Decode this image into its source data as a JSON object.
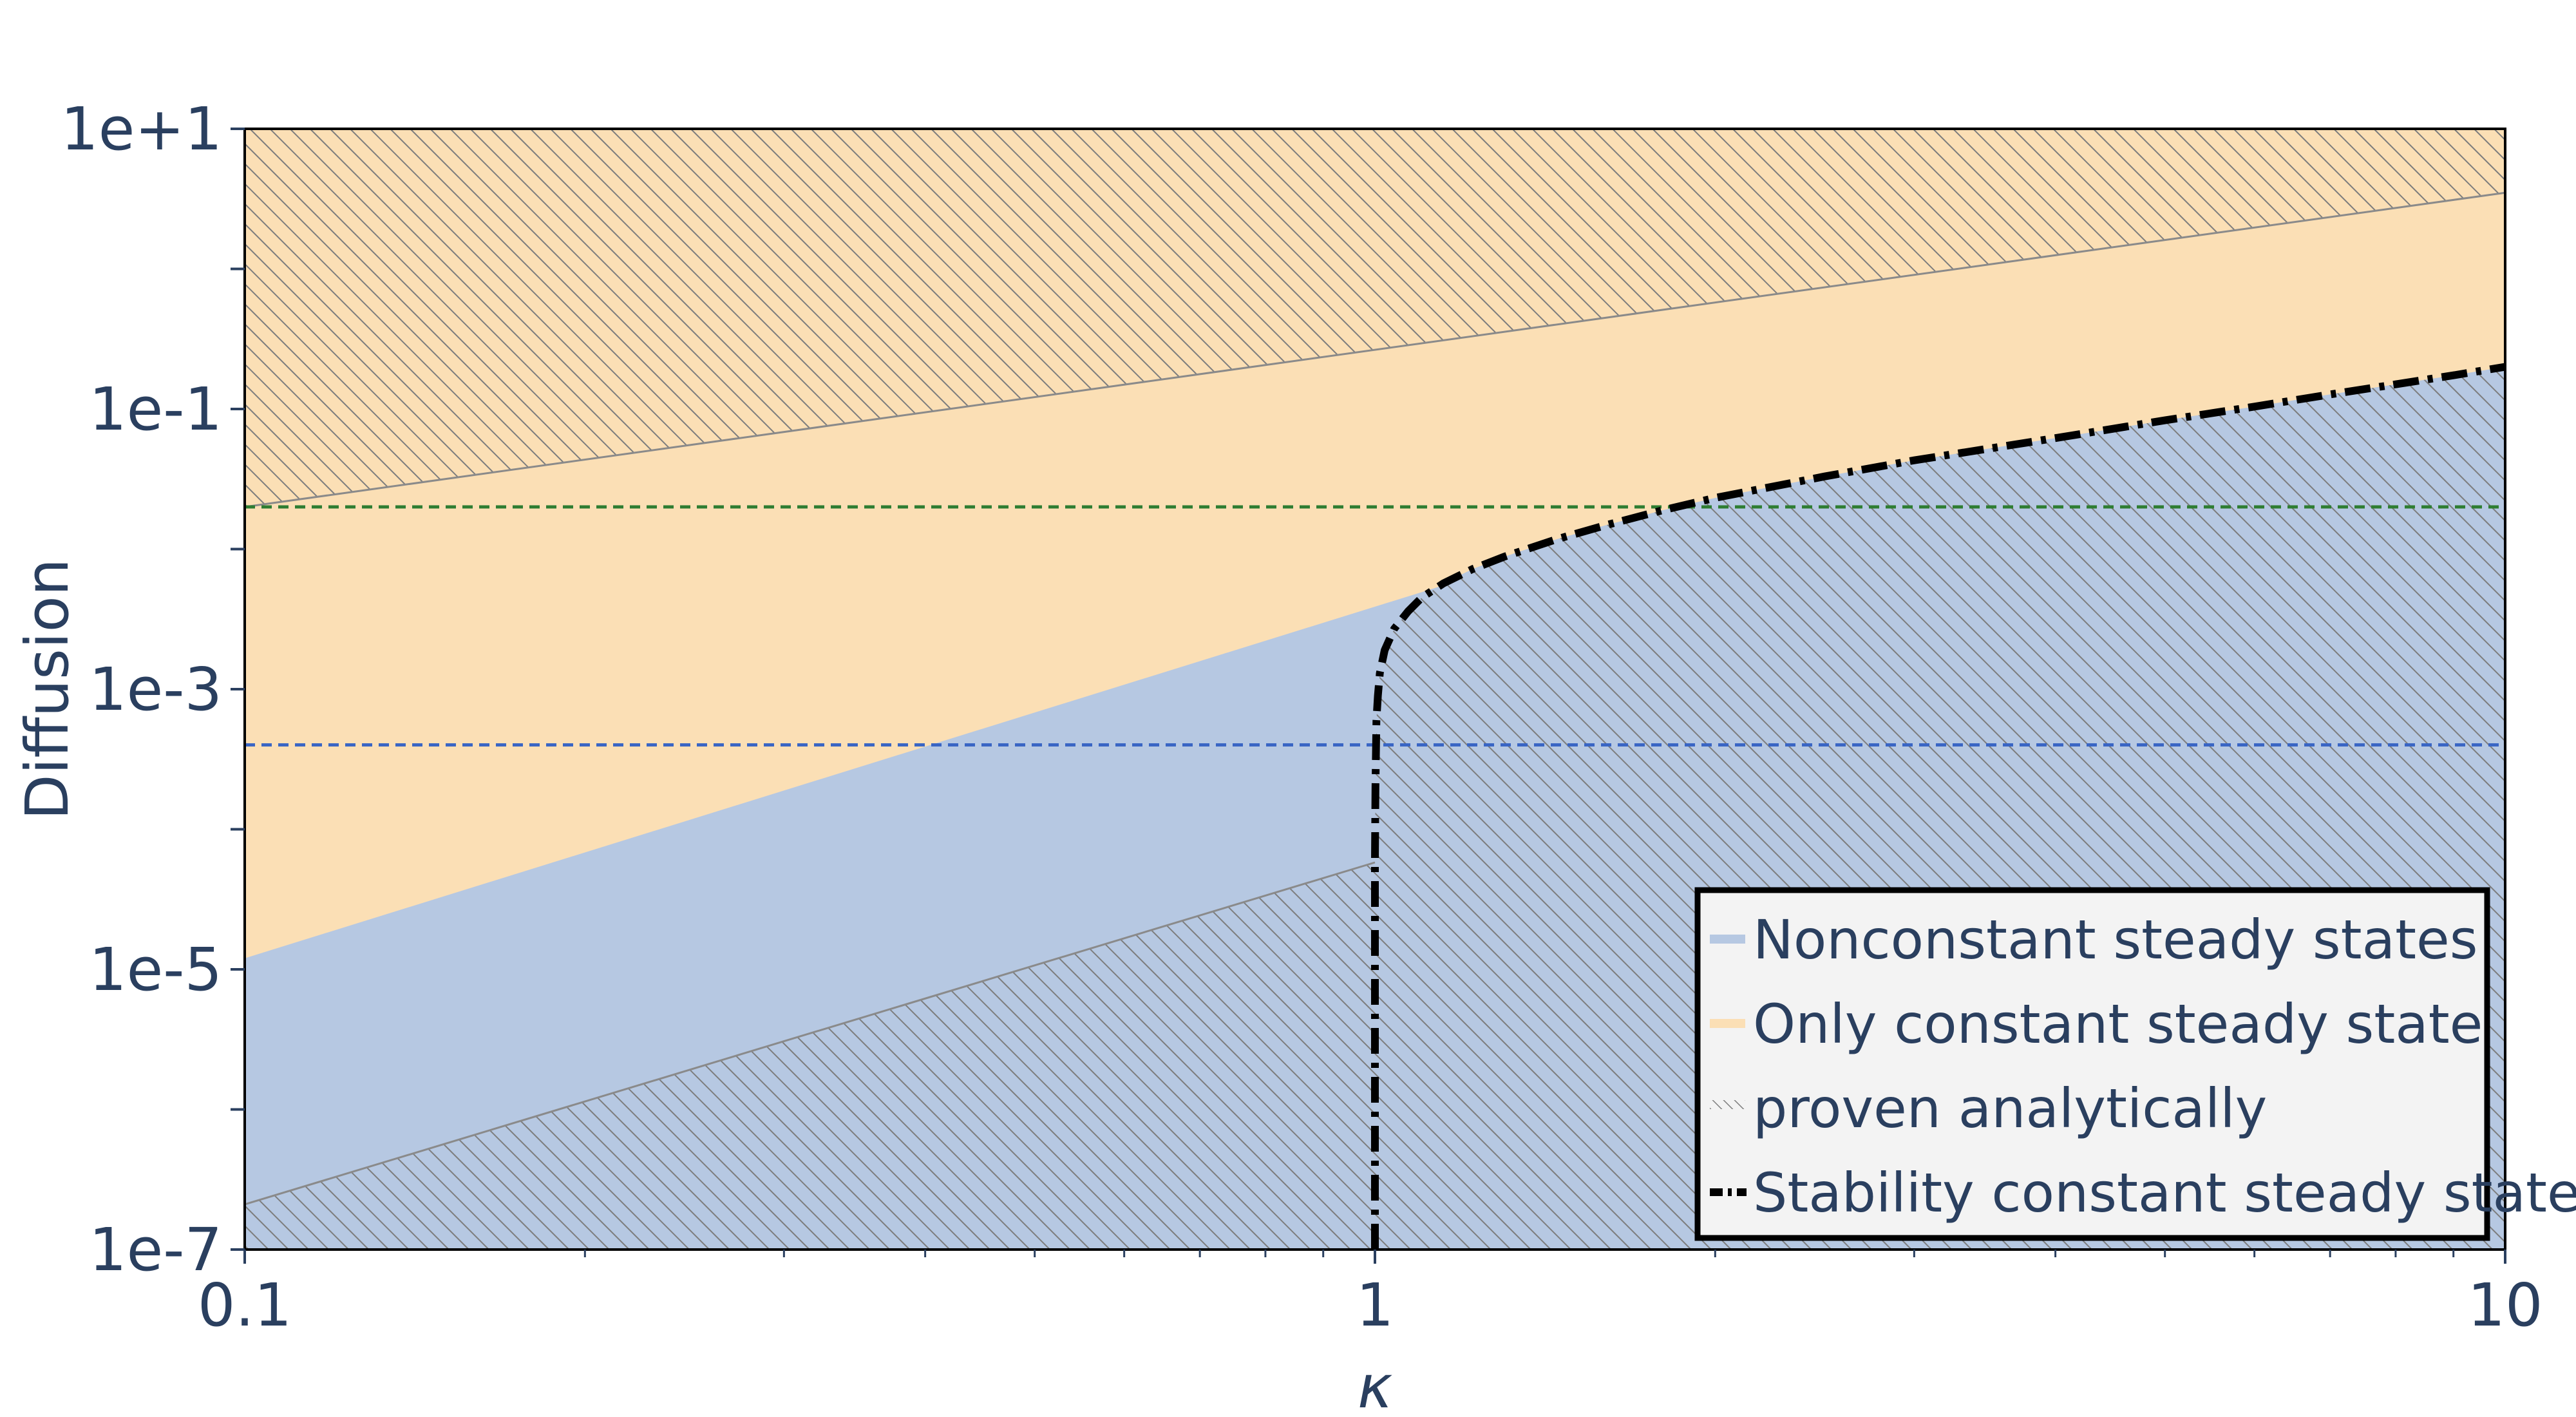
{
  "chart_data": {
    "type": "area",
    "xlabel": "κ",
    "ylabel": "Diffusion",
    "x_scale": "log",
    "y_scale": "log",
    "xlim": [
      0.1,
      10
    ],
    "ylim": [
      1e-07,
      10
    ],
    "x_ticks": [
      {
        "value": 0.1,
        "label": "0.1"
      },
      {
        "value": 1,
        "label": "1"
      },
      {
        "value": 10,
        "label": "10"
      }
    ],
    "y_ticks": [
      {
        "value": 1e-07,
        "label": "1e-7"
      },
      {
        "value": 1e-05,
        "label": "1e-5"
      },
      {
        "value": 0.001,
        "label": "1e-3"
      },
      {
        "value": 0.1,
        "label": "1e-1"
      },
      {
        "value": 10,
        "label": "1e+1"
      }
    ],
    "legend_position": "bottom-right",
    "colors": {
      "nonconstant": "#b6c8e2",
      "constant": "#fbdfb5",
      "hatch": "#7d7d7d",
      "stability": "#000000",
      "green_line": "#2e7d32",
      "blue_line": "#3a66c4",
      "legend_bg": "#f3f3f3"
    },
    "regions": {
      "nonconstant_upper_boundary": {
        "x": [
          0.1,
          1.3
        ],
        "y": [
          1.2e-05,
          0.0075
        ]
      },
      "hatch_upper_boundary": {
        "x": [
          0.1,
          10
        ],
        "y": [
          0.02,
          3.5
        ]
      },
      "hatch_lower_boundary": {
        "x": [
          0.1,
          1.0
        ],
        "y": [
          2.1e-07,
          5.8e-05
        ]
      }
    },
    "reference_lines": [
      {
        "y": 0.02,
        "color": "green"
      },
      {
        "y": 0.0004,
        "color": "blue"
      }
    ],
    "series": [
      {
        "name": "Stability constant steady state",
        "x": [
          1.0,
          1.0,
          1.001,
          1.003,
          1.006,
          1.01,
          1.02,
          1.04,
          1.07,
          1.1,
          1.15,
          1.22,
          1.3,
          1.45,
          1.6,
          1.8,
          2.0,
          2.5,
          3.0,
          4.0,
          5.0,
          6.0,
          7.0,
          8.0,
          9.0,
          10.0
        ],
        "y": [
          1e-07,
          6e-05,
          0.0002,
          0.0006,
          0.0009,
          0.0013,
          0.0019,
          0.0027,
          0.0036,
          0.0045,
          0.0057,
          0.0072,
          0.0088,
          0.0118,
          0.0148,
          0.019,
          0.0232,
          0.033,
          0.043,
          0.062,
          0.083,
          0.104,
          0.127,
          0.15,
          0.174,
          0.2
        ]
      }
    ],
    "legend": [
      {
        "label": "Nonconstant steady states",
        "marker": "fill-blue"
      },
      {
        "label": "Only constant steady state",
        "marker": "fill-orange"
      },
      {
        "label": "proven analytically",
        "marker": "hatch"
      },
      {
        "label": "Stability constant steady state",
        "marker": "dashdot"
      }
    ]
  }
}
